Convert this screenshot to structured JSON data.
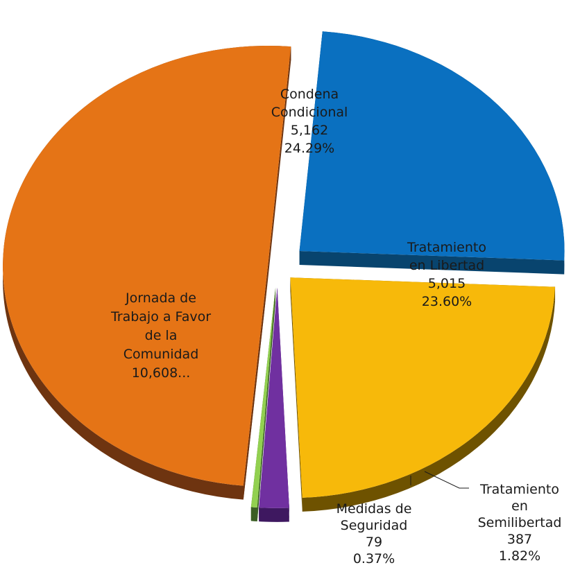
{
  "chart_data": {
    "type": "pie",
    "title": "",
    "categories": [
      "Condena Condicional",
      "Tratamiento en Libertad",
      "Tratamiento en Semilibertad",
      "Medidas de Seguridad",
      "Jornada de Trabajo a Favor de la Comunidad"
    ],
    "values": [
      5162,
      5015,
      387,
      79,
      10608
    ],
    "percentages": [
      "24.29%",
      "23.60%",
      "1.82%",
      "0.37%",
      ""
    ],
    "colors": [
      "#0A70C0",
      "#F7B90A",
      "#7030A0",
      "#92D050",
      "#E57416"
    ],
    "side_colors": [
      "#08446E",
      "#6E5200",
      "#3E1860",
      "#3B5E24",
      "#6E3410"
    ],
    "labels": [
      {
        "lines": [
          "Condena",
          "Condicional",
          "5,162",
          "24.29%"
        ]
      },
      {
        "lines": [
          "Tratamiento",
          "en Libertad",
          "5,015",
          "23.60%"
        ]
      },
      {
        "lines": [
          "Tratamiento",
          "en",
          "Semilibertad",
          "387",
          "1.82%"
        ]
      },
      {
        "lines": [
          "Medidas de",
          "Seguridad",
          "79",
          "0.37%"
        ]
      },
      {
        "lines": [
          "Jornada de",
          "Trabajo a Favor",
          "de la",
          "Comunidad",
          "10,608..."
        ]
      }
    ]
  }
}
